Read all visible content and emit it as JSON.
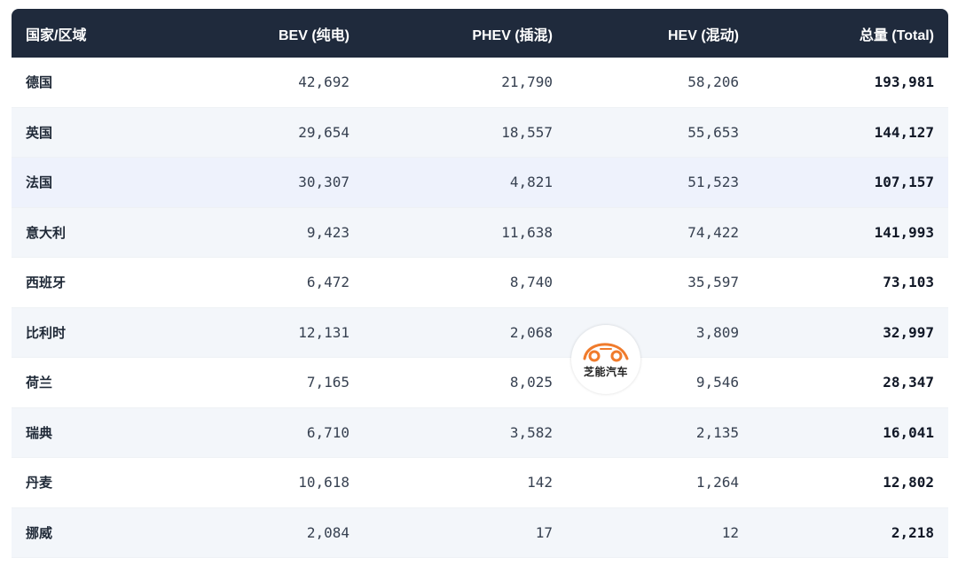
{
  "table": {
    "headers": [
      "国家/区域",
      "BEV (纯电)",
      "PHEV (插混)",
      "HEV (混动)",
      "总量 (Total)"
    ],
    "rows": [
      {
        "country": "德国",
        "bev": "42,692",
        "phev": "21,790",
        "hev": "58,206",
        "total": "193,981"
      },
      {
        "country": "英国",
        "bev": "29,654",
        "phev": "18,557",
        "hev": "55,653",
        "total": "144,127"
      },
      {
        "country": "法国",
        "bev": "30,307",
        "phev": "4,821",
        "hev": "51,523",
        "total": "107,157"
      },
      {
        "country": "意大利",
        "bev": "9,423",
        "phev": "11,638",
        "hev": "74,422",
        "total": "141,993"
      },
      {
        "country": "西班牙",
        "bev": "6,472",
        "phev": "8,740",
        "hev": "35,597",
        "total": "73,103"
      },
      {
        "country": "比利时",
        "bev": "12,131",
        "phev": "2,068",
        "hev": "3,809",
        "total": "32,997"
      },
      {
        "country": "荷兰",
        "bev": "7,165",
        "phev": "8,025",
        "hev": "9,546",
        "total": "28,347"
      },
      {
        "country": "瑞典",
        "bev": "6,710",
        "phev": "3,582",
        "hev": "2,135",
        "total": "16,041"
      },
      {
        "country": "丹麦",
        "bev": "10,618",
        "phev": "142",
        "hev": "1,264",
        "total": "12,802"
      },
      {
        "country": "挪威",
        "bev": "2,084",
        "phev": "17",
        "hev": "12",
        "total": "2,218"
      }
    ]
  },
  "watermark": {
    "text": "芝能汽车",
    "accent_color": "#f07b2c"
  },
  "colors": {
    "header_bg": "#1f2a3c",
    "row_alt_bg": "#f3f6fa"
  }
}
